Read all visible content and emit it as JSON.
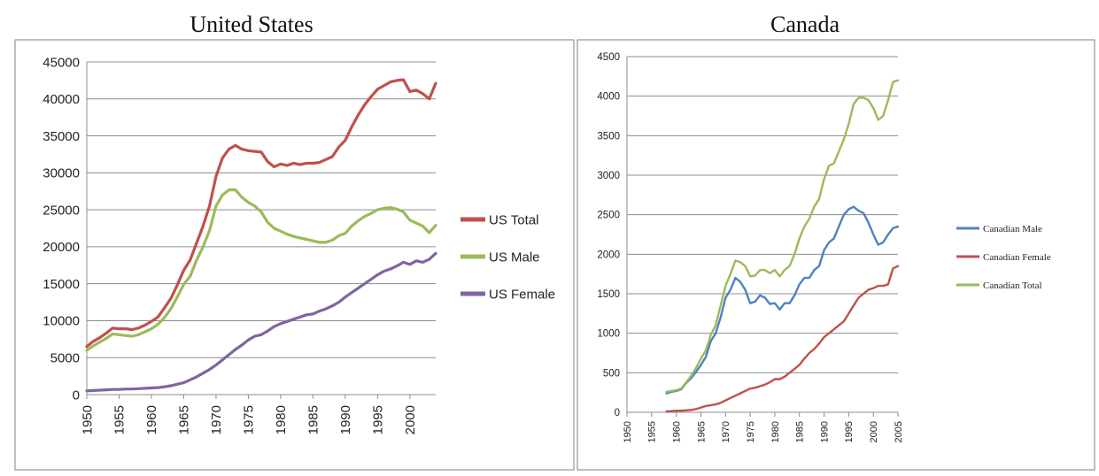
{
  "chart_data": [
    {
      "type": "line",
      "title": "United States",
      "xlabel": "",
      "ylabel": "",
      "xlim": [
        1950,
        2004
      ],
      "ylim": [
        0,
        45000
      ],
      "yticks": [
        0,
        5000,
        10000,
        15000,
        20000,
        25000,
        30000,
        35000,
        40000,
        45000
      ],
      "xticks": [
        1950,
        1955,
        1960,
        1965,
        1970,
        1975,
        1980,
        1985,
        1990,
        1995,
        2000
      ],
      "grid": true,
      "legend": "right",
      "x": [
        1950,
        1951,
        1952,
        1953,
        1954,
        1955,
        1956,
        1957,
        1958,
        1959,
        1960,
        1961,
        1962,
        1963,
        1964,
        1965,
        1966,
        1967,
        1968,
        1969,
        1970,
        1971,
        1972,
        1973,
        1974,
        1975,
        1976,
        1977,
        1978,
        1979,
        1980,
        1981,
        1982,
        1983,
        1984,
        1985,
        1986,
        1987,
        1988,
        1989,
        1990,
        1991,
        1992,
        1993,
        1994,
        1995,
        1996,
        1997,
        1998,
        1999,
        2000,
        2001,
        2002,
        2003,
        2004
      ],
      "series": [
        {
          "name": "US Total",
          "color": "#c0504d",
          "values": [
            6500,
            7200,
            7700,
            8300,
            9000,
            8900,
            8900,
            8800,
            9000,
            9400,
            9900,
            10500,
            11700,
            13000,
            14800,
            16800,
            18200,
            20500,
            22800,
            25500,
            29500,
            32000,
            33200,
            33700,
            33200,
            33000,
            32900,
            32800,
            31500,
            30800,
            31200,
            31000,
            31300,
            31100,
            31300,
            31300,
            31400,
            31800,
            32200,
            33500,
            34400,
            36200,
            37800,
            39200,
            40300,
            41300,
            41800,
            42300,
            42500,
            42600,
            41000,
            41200,
            40700,
            40000,
            42100
          ]
        },
        {
          "name": "US Male",
          "color": "#9bbb59",
          "values": [
            6000,
            6600,
            7100,
            7600,
            8200,
            8100,
            8000,
            7900,
            8100,
            8500,
            8900,
            9500,
            10400,
            11600,
            13200,
            14900,
            16000,
            18200,
            20000,
            22200,
            25500,
            27000,
            27700,
            27700,
            26700,
            26000,
            25500,
            24700,
            23300,
            22500,
            22100,
            21700,
            21400,
            21200,
            21000,
            20800,
            20600,
            20600,
            20900,
            21500,
            21800,
            22800,
            23500,
            24100,
            24500,
            25000,
            25200,
            25300,
            25100,
            24700,
            23600,
            23200,
            22800,
            21900,
            22900
          ]
        },
        {
          "name": "US Female",
          "color": "#8064a2",
          "values": [
            500,
            550,
            600,
            650,
            700,
            700,
            750,
            750,
            800,
            850,
            900,
            950,
            1050,
            1200,
            1400,
            1600,
            2000,
            2400,
            2900,
            3400,
            4000,
            4700,
            5400,
            6100,
            6700,
            7400,
            7900,
            8100,
            8600,
            9200,
            9600,
            9900,
            10200,
            10500,
            10800,
            10900,
            11300,
            11600,
            12000,
            12500,
            13200,
            13800,
            14400,
            15000,
            15600,
            16200,
            16700,
            17000,
            17400,
            17900,
            17600,
            18100,
            17900,
            18300,
            19100
          ]
        }
      ]
    },
    {
      "type": "line",
      "title": "Canada",
      "xlabel": "",
      "ylabel": "",
      "xlim": [
        1950,
        2005
      ],
      "ylim": [
        0,
        4500
      ],
      "yticks": [
        0,
        500,
        1000,
        1500,
        2000,
        2500,
        3000,
        3500,
        4000,
        4500
      ],
      "xticks": [
        1950,
        1955,
        1960,
        1965,
        1970,
        1975,
        1980,
        1985,
        1990,
        1995,
        2000,
        2005
      ],
      "grid": true,
      "legend": "right",
      "x": [
        1958,
        1959,
        1960,
        1961,
        1962,
        1963,
        1964,
        1965,
        1966,
        1967,
        1968,
        1969,
        1970,
        1971,
        1972,
        1973,
        1974,
        1975,
        1976,
        1977,
        1978,
        1979,
        1980,
        1981,
        1982,
        1983,
        1984,
        1985,
        1986,
        1987,
        1988,
        1989,
        1990,
        1991,
        1992,
        1993,
        1994,
        1995,
        1996,
        1997,
        1998,
        1999,
        2000,
        2001,
        2002,
        2003,
        2004,
        2005
      ],
      "series": [
        {
          "name": "Canadian Male",
          "color": "#4f81bd",
          "values": [
            240,
            260,
            270,
            290,
            370,
            430,
            510,
            600,
            700,
            900,
            1000,
            1200,
            1450,
            1550,
            1700,
            1650,
            1550,
            1380,
            1400,
            1480,
            1450,
            1370,
            1380,
            1300,
            1380,
            1380,
            1480,
            1620,
            1700,
            1700,
            1800,
            1850,
            2050,
            2150,
            2200,
            2350,
            2500,
            2570,
            2600,
            2550,
            2520,
            2400,
            2250,
            2120,
            2150,
            2250,
            2330,
            2350
          ]
        },
        {
          "name": "Canadian Female",
          "color": "#c0504d",
          "values": [
            10,
            15,
            20,
            20,
            25,
            30,
            40,
            60,
            80,
            90,
            100,
            120,
            150,
            180,
            210,
            240,
            270,
            300,
            310,
            330,
            350,
            380,
            420,
            420,
            450,
            500,
            550,
            600,
            680,
            750,
            800,
            870,
            950,
            1000,
            1050,
            1100,
            1150,
            1250,
            1350,
            1450,
            1500,
            1550,
            1570,
            1600,
            1600,
            1620,
            1820,
            1850
          ]
        },
        {
          "name": "Canadian Total",
          "color": "#9bbb59",
          "values": [
            260,
            270,
            280,
            300,
            380,
            460,
            560,
            680,
            780,
            980,
            1100,
            1350,
            1600,
            1750,
            1920,
            1900,
            1850,
            1720,
            1730,
            1800,
            1800,
            1760,
            1800,
            1720,
            1800,
            1850,
            2000,
            2200,
            2350,
            2450,
            2600,
            2700,
            2950,
            3120,
            3150,
            3300,
            3450,
            3650,
            3900,
            3980,
            3980,
            3950,
            3850,
            3700,
            3750,
            3950,
            4180,
            4200
          ]
        }
      ]
    }
  ]
}
